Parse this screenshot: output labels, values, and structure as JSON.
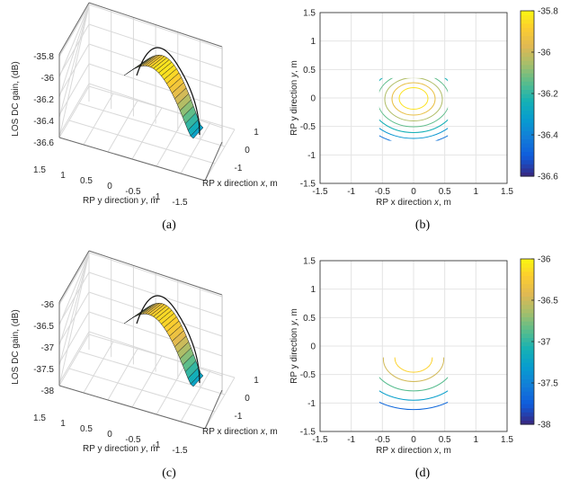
{
  "figure": {
    "captions": [
      "(a)",
      "(b)",
      "(c)",
      "(d)"
    ]
  },
  "chart_data": [
    {
      "id": "a",
      "type": "surface",
      "zlabel": "LOS DC gain, (dB)",
      "xlabel": "RP x direction x, m",
      "ylabel": "RP y direction y, m",
      "x_ticks": [
        "1",
        "0",
        "-1"
      ],
      "y_ticks": [
        "1.5",
        "1",
        "0.5",
        "0",
        "-0.5",
        "-1",
        "-1.5"
      ],
      "z_ticks": [
        "-35.8",
        "-36",
        "-36.2",
        "-36.4",
        "-36.6"
      ],
      "zlim": [
        -36.65,
        -35.75
      ],
      "peak_z": -35.8,
      "min_z": -36.6
    },
    {
      "id": "b",
      "type": "contour",
      "xlabel": "RP x direction x, m",
      "ylabel": "RP y direction y, m",
      "xlim": [
        -1.5,
        1.5
      ],
      "ylim": [
        -1.5,
        1.5
      ],
      "x_ticks": [
        "-1.5",
        "-1",
        "-0.5",
        "0",
        "0.5",
        "1",
        "1.5"
      ],
      "y_ticks": [
        "1.5",
        "1",
        "0.5",
        "0",
        "-0.5",
        "-1",
        "-1.5"
      ],
      "colorbar": {
        "min": -36.6,
        "max": -35.8,
        "ticks": [
          "-35.8",
          "-36",
          "-36.2",
          "-36.4",
          "-36.6"
        ]
      },
      "peak": [
        0,
        0
      ],
      "contour_levels": [
        -35.85,
        -35.95,
        -36.05,
        -36.15,
        -36.25,
        -36.35,
        -36.45,
        -36.55
      ],
      "region": {
        "x": [
          -0.55,
          0.55
        ],
        "y": [
          -0.75,
          0.35
        ]
      },
      "grid": true
    },
    {
      "id": "c",
      "type": "surface",
      "zlabel": "LOS DC gain, (dB)",
      "xlabel": "RP x direction x, m",
      "ylabel": "RP y direction y, m",
      "x_ticks": [
        "1",
        "0",
        "-1"
      ],
      "y_ticks": [
        "1.5",
        "1",
        "0.5",
        "0",
        "-0.5",
        "-1",
        "-1.5"
      ],
      "z_ticks": [
        "-36",
        "-36.5",
        "-37",
        "-37.5",
        "-38"
      ],
      "zlim": [
        -38.2,
        -35.8
      ],
      "peak_z": -36,
      "min_z": -38
    },
    {
      "id": "d",
      "type": "contour",
      "xlabel": "RP x direction x, m",
      "ylabel": "RP y direction y, m",
      "xlim": [
        -1.5,
        1.5
      ],
      "ylim": [
        -1.5,
        1.5
      ],
      "x_ticks": [
        "-1.5",
        "-1",
        "-0.5",
        "0",
        "0.5",
        "1",
        "1.5"
      ],
      "y_ticks": [
        "1.5",
        "1",
        "0.5",
        "0",
        "-0.5",
        "-1",
        "-1.5"
      ],
      "colorbar": {
        "min": -38,
        "max": -36,
        "ticks": [
          "-36",
          "-36.5",
          "-37",
          "-37.5",
          "-38"
        ]
      },
      "peak": [
        0,
        -0.2
      ],
      "contour_levels": [
        -36.2,
        -36.5,
        -36.9,
        -37.3,
        -37.7
      ],
      "region": {
        "x": [
          -0.55,
          0.55
        ],
        "y": [
          -1.25,
          -0.2
        ]
      },
      "grid": true
    }
  ]
}
